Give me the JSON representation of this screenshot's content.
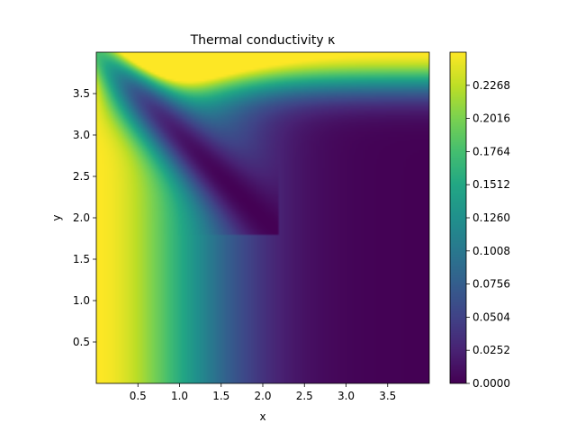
{
  "chart_data": {
    "type": "heatmap",
    "title": "Thermal conductivity κ",
    "xlabel": "x",
    "ylabel": "y",
    "xlim": [
      0,
      4
    ],
    "ylim": [
      0,
      4
    ],
    "x_ticks": [
      0.5,
      1.0,
      1.5,
      2.0,
      2.5,
      3.0,
      3.5
    ],
    "x_tick_labels": [
      "0.5",
      "1.0",
      "1.5",
      "2.0",
      "2.5",
      "3.0",
      "3.5"
    ],
    "y_ticks": [
      0.5,
      1.0,
      1.5,
      2.0,
      2.5,
      3.0,
      3.5
    ],
    "y_tick_labels": [
      "0.5",
      "1.0",
      "1.5",
      "2.0",
      "2.5",
      "3.0",
      "3.5"
    ],
    "colormap": "viridis",
    "grid": false,
    "colorbar": {
      "min": 0.0,
      "max": 0.252,
      "ticks": [
        0.0,
        0.0252,
        0.0504,
        0.0756,
        0.1008,
        0.126,
        0.1512,
        0.1764,
        0.2016,
        0.2268
      ],
      "tick_labels": [
        "0.0000",
        "0.0252",
        "0.0504",
        "0.0756",
        "0.1008",
        "0.1260",
        "0.1512",
        "0.1764",
        "0.2016",
        "0.2268"
      ]
    },
    "field": {
      "description_values": "kappa(x,y) = 0.252 * (exp(-(x/1.45)^2) + exp(-((4-y)/0.45)^2)) near edges, minimum along diagonal y = 4 - x",
      "left_edge_value": 0.252,
      "top_edge_value": 0.252,
      "lower_right_value": 0.0
    }
  }
}
